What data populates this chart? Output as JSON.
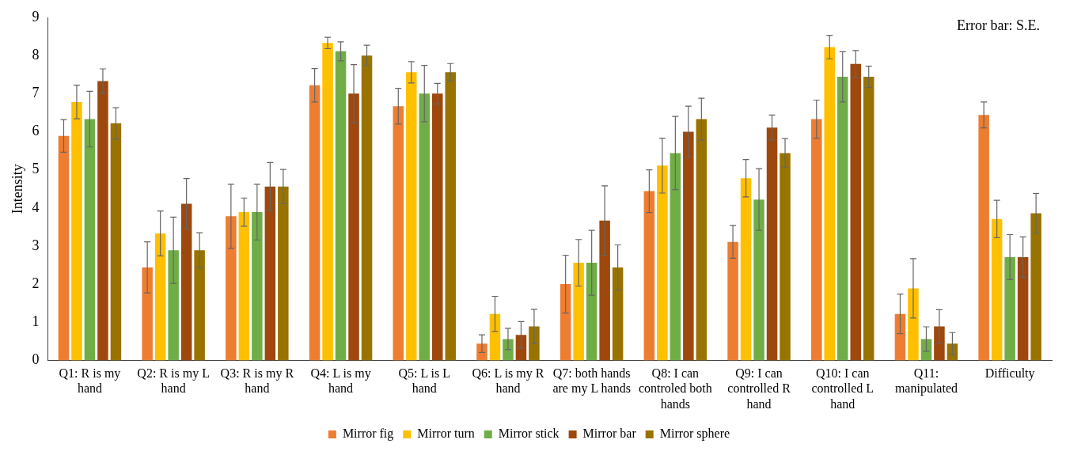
{
  "chart_data": {
    "type": "bar",
    "ylabel": "Intensity",
    "categories": [
      "Q1: R is my hand",
      "Q2: R is my L hand",
      "Q3: R is my R hand",
      "Q4: L is my hand",
      "Q5: L is L hand",
      "Q6:  L is my R hand",
      "Q7: both hands are my L hands",
      "Q8: I can controled both hands",
      "Q9: I can controlled R hand",
      "Q10: I can controlled L hand",
      "Q11: manipulated",
      "Difficulty"
    ],
    "series": [
      {
        "name": "Mirror fig",
        "color": "#ed7d31",
        "values": [
          5.89,
          2.44,
          3.78,
          7.22,
          6.67,
          0.44,
          2.0,
          4.44,
          3.11,
          6.33,
          1.22,
          6.44
        ],
        "errors": [
          0.43,
          0.67,
          0.84,
          0.44,
          0.47,
          0.23,
          0.76,
          0.56,
          0.43,
          0.5,
          0.52,
          0.34
        ]
      },
      {
        "name": "Mirror turn",
        "color": "#ffc000",
        "values": [
          6.78,
          3.33,
          3.89,
          8.33,
          7.56,
          1.22,
          2.56,
          5.11,
          4.78,
          8.22,
          1.89,
          3.71
        ],
        "errors": [
          0.44,
          0.59,
          0.37,
          0.15,
          0.28,
          0.46,
          0.61,
          0.72,
          0.49,
          0.31,
          0.78,
          0.49
        ]
      },
      {
        "name": "Mirror stick",
        "color": "#70ad47",
        "values": [
          6.33,
          2.89,
          3.89,
          8.11,
          7.0,
          0.56,
          2.56,
          5.44,
          4.22,
          7.44,
          0.56,
          2.71
        ],
        "errors": [
          0.73,
          0.87,
          0.73,
          0.25,
          0.74,
          0.28,
          0.85,
          0.96,
          0.81,
          0.66,
          0.32,
          0.59
        ]
      },
      {
        "name": "Mirror bar",
        "color": "#9e480e",
        "values": [
          7.33,
          4.11,
          4.56,
          7.0,
          7.0,
          0.67,
          3.67,
          6.0,
          6.11,
          7.78,
          0.89,
          2.71
        ],
        "errors": [
          0.32,
          0.66,
          0.63,
          0.76,
          0.27,
          0.35,
          0.91,
          0.67,
          0.33,
          0.35,
          0.44,
          0.53
        ]
      },
      {
        "name": "Mirror sphere",
        "color": "#997300",
        "values": [
          6.22,
          2.89,
          4.56,
          8.0,
          7.56,
          0.89,
          2.44,
          6.33,
          5.44,
          7.44,
          0.44,
          3.86
        ],
        "errors": [
          0.41,
          0.46,
          0.45,
          0.27,
          0.23,
          0.45,
          0.59,
          0.55,
          0.38,
          0.28,
          0.29,
          0.52
        ]
      }
    ],
    "ylim": [
      0,
      9
    ],
    "yticks": [
      0,
      1,
      2,
      3,
      4,
      5,
      6,
      7,
      8,
      9
    ],
    "grid": false,
    "legend": "bottom",
    "annotations": [
      "Error bar: S.E."
    ]
  }
}
